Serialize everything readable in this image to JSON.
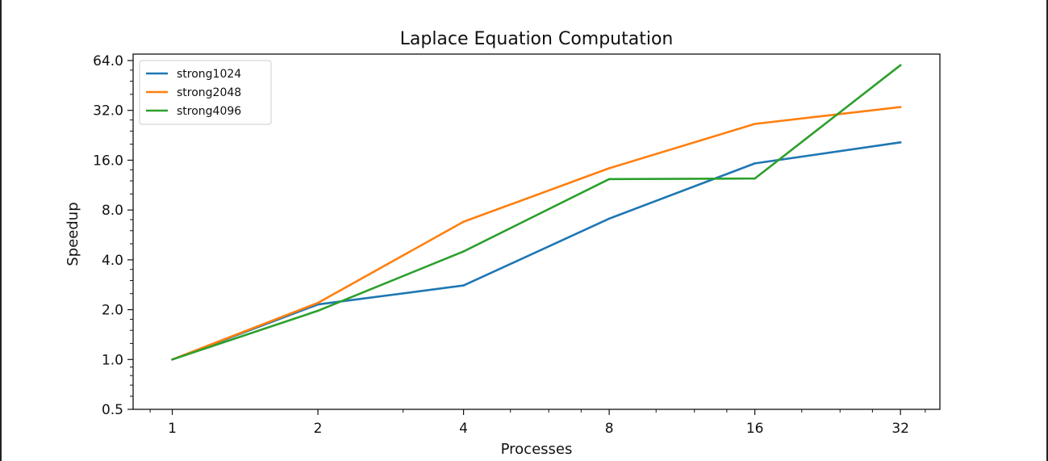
{
  "chart_data": {
    "type": "line",
    "title": "Laplace Equation Computation",
    "xlabel": "Processes",
    "ylabel": "Speedup",
    "x_scale": "log2",
    "y_scale": "log2",
    "x": [
      1,
      2,
      4,
      8,
      16,
      32
    ],
    "xticks": [
      "1",
      "2",
      "4",
      "8",
      "16",
      "32"
    ],
    "yticks": [
      "0.5",
      "1.0",
      "2.0",
      "4.0",
      "8.0",
      "16.0",
      "32.0",
      "64.0"
    ],
    "ylim": [
      0.5,
      70
    ],
    "grid": false,
    "legend_position": "top-left",
    "series": [
      {
        "name": "strong1024",
        "color": "#1f77b4",
        "values": [
          1.0,
          2.15,
          2.8,
          7.1,
          15.3,
          20.5
        ]
      },
      {
        "name": "strong2048",
        "color": "#ff7f0e",
        "values": [
          1.0,
          2.2,
          6.8,
          14.3,
          26.5,
          33.5
        ]
      },
      {
        "name": "strong4096",
        "color": "#2ca02c",
        "values": [
          1.0,
          1.97,
          4.5,
          12.3,
          12.4,
          60.0
        ]
      }
    ]
  }
}
